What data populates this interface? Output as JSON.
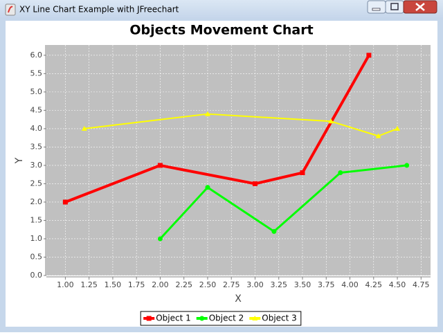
{
  "window": {
    "title": "XY Line Chart Example with JFreechart"
  },
  "chart_data": {
    "type": "line",
    "title": "Objects Movement Chart",
    "x_label": "X",
    "y_label": "Y",
    "xlim": [
      0.8,
      4.85
    ],
    "ylim": [
      0,
      6.28
    ],
    "xticks": [
      {
        "value": 1,
        "label": "1.00"
      },
      {
        "value": 1.25,
        "label": "1.25"
      },
      {
        "value": 1.5,
        "label": "1.50"
      },
      {
        "value": 1.75,
        "label": "1.75"
      },
      {
        "value": 2,
        "label": "2.00"
      },
      {
        "value": 2.25,
        "label": "2.25"
      },
      {
        "value": 2.5,
        "label": "2.50"
      },
      {
        "value": 2.75,
        "label": "2.75"
      },
      {
        "value": 3,
        "label": "3.00"
      },
      {
        "value": 3.25,
        "label": "3.25"
      },
      {
        "value": 3.5,
        "label": "3.50"
      },
      {
        "value": 3.75,
        "label": "3.75"
      },
      {
        "value": 4,
        "label": "4.00"
      },
      {
        "value": 4.25,
        "label": "4.25"
      },
      {
        "value": 4.5,
        "label": "4.50"
      },
      {
        "value": 4.75,
        "label": "4.75"
      }
    ],
    "yticks": [
      {
        "value": 0,
        "label": "0.0"
      },
      0.5,
      {
        "value": 1,
        "label": "1.0"
      },
      1.5,
      {
        "value": 2,
        "label": "2.0"
      },
      2.5,
      {
        "value": 3,
        "label": "3.0"
      },
      3.5,
      {
        "value": 4,
        "label": "4.0"
      },
      4.5,
      {
        "value": 5,
        "label": "5.0"
      },
      5.5,
      {
        "value": 6,
        "label": "6.0"
      }
    ],
    "grid": true,
    "legend": "bottom",
    "series": [
      {
        "name": "Object 1",
        "color": "#ff0000",
        "marker": "square",
        "x": [
          1.0,
          2.0,
          3.0,
          3.5,
          4.2
        ],
        "values": [
          2.0,
          3.0,
          2.5,
          2.8,
          6.0
        ]
      },
      {
        "name": "Object 2",
        "color": "#00ff00",
        "marker": "circle",
        "x": [
          2.0,
          2.5,
          3.2,
          3.9,
          4.6
        ],
        "values": [
          1.0,
          2.4,
          1.2,
          2.8,
          3.0
        ]
      },
      {
        "name": "Object 3",
        "color": "#ffff00",
        "marker": "triangle",
        "x": [
          1.2,
          2.5,
          3.8,
          4.3,
          4.5
        ],
        "values": [
          4.0,
          4.4,
          4.2,
          3.8,
          4.0
        ]
      }
    ]
  }
}
